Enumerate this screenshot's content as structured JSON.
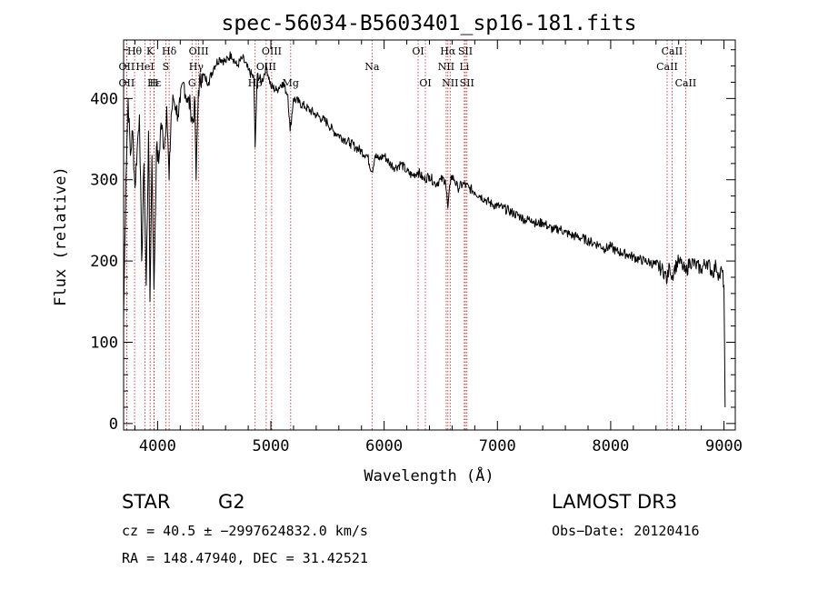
{
  "chart_data": {
    "type": "line",
    "title": "spec-56034-B5603401_sp16-181.fits",
    "xlabel": "Wavelength (Å)",
    "ylabel": "Flux (relative)",
    "xlim": [
      3700,
      9100
    ],
    "ylim": [
      -8,
      472
    ],
    "xticks": [
      4000,
      5000,
      6000,
      7000,
      8000,
      9000
    ],
    "yticks": [
      0,
      100,
      200,
      300,
      400
    ],
    "series": [
      {
        "name": "spectrum",
        "x": [
          3700,
          3720,
          3740,
          3760,
          3780,
          3800,
          3820,
          3840,
          3860,
          3880,
          3900,
          3920,
          3933,
          3950,
          3968,
          3990,
          4010,
          4030,
          4060,
          4080,
          4102,
          4120,
          4140,
          4160,
          4180,
          4200,
          4230,
          4260,
          4290,
          4310,
          4330,
          4340,
          4360,
          4390,
          4420,
          4450,
          4500,
          4550,
          4600,
          4650,
          4700,
          4750,
          4800,
          4850,
          4861,
          4880,
          4920,
          4960,
          5000,
          5050,
          5100,
          5150,
          5170,
          5200,
          5250,
          5300,
          5350,
          5400,
          5450,
          5500,
          5550,
          5600,
          5650,
          5700,
          5750,
          5800,
          5850,
          5893,
          5920,
          5950,
          6000,
          6050,
          6100,
          6150,
          6200,
          6250,
          6300,
          6350,
          6400,
          6450,
          6500,
          6540,
          6563,
          6590,
          6620,
          6650,
          6700,
          6750,
          6800,
          6850,
          6900,
          6950,
          7000,
          7050,
          7100,
          7150,
          7200,
          7250,
          7300,
          7350,
          7400,
          7450,
          7500,
          7550,
          7600,
          7650,
          7700,
          7750,
          7800,
          7850,
          7900,
          7950,
          8000,
          8050,
          8100,
          8150,
          8200,
          8250,
          8300,
          8350,
          8400,
          8450,
          8480,
          8498,
          8520,
          8542,
          8560,
          8600,
          8630,
          8662,
          8700,
          8750,
          8800,
          8850,
          8900,
          8930,
          8960,
          8980,
          9000,
          9010
        ],
        "y": [
          130,
          300,
          400,
          330,
          360,
          290,
          340,
          380,
          200,
          320,
          170,
          360,
          150,
          330,
          165,
          340,
          320,
          370,
          340,
          390,
          300,
          380,
          400,
          390,
          380,
          395,
          420,
          400,
          390,
          370,
          395,
          300,
          410,
          430,
          425,
          420,
          440,
          450,
          445,
          455,
          440,
          450,
          435,
          425,
          340,
          430,
          420,
          440,
          415,
          410,
          420,
          405,
          360,
          400,
          395,
          390,
          385,
          380,
          375,
          370,
          360,
          355,
          350,
          345,
          340,
          335,
          330,
          310,
          330,
          325,
          330,
          320,
          315,
          320,
          310,
          305,
          310,
          300,
          305,
          295,
          300,
          300,
          265,
          305,
          300,
          290,
          295,
          290,
          285,
          280,
          275,
          270,
          268,
          265,
          262,
          258,
          255,
          250,
          252,
          245,
          248,
          242,
          238,
          240,
          235,
          232,
          230,
          228,
          225,
          222,
          220,
          215,
          218,
          212,
          210,
          208,
          205,
          202,
          200,
          198,
          195,
          190,
          185,
          175,
          195,
          180,
          190,
          200,
          195,
          185,
          200,
          195,
          190,
          200,
          185,
          195,
          180,
          190,
          170,
          20
        ],
        "color": "#000000"
      }
    ],
    "lines": [
      {
        "label": "Hθ",
        "wave": 3797,
        "row": 1
      },
      {
        "label": "K",
        "wave": 3934,
        "row": 1
      },
      {
        "label": "Hδ",
        "wave": 4102,
        "row": 1
      },
      {
        "label": "OIII",
        "wave": 4363,
        "row": 1
      },
      {
        "label": "OIII",
        "wave": 5007,
        "row": 1
      },
      {
        "label": "OI",
        "wave": 6300,
        "row": 1
      },
      {
        "label": "Hα",
        "wave": 6563,
        "row": 1
      },
      {
        "label": "SII",
        "wave": 6717,
        "row": 1
      },
      {
        "label": "CaII",
        "wave": 8542,
        "row": 1
      },
      {
        "label": "OII",
        "wave": 3727,
        "row": 2
      },
      {
        "label": "HeI",
        "wave": 3889,
        "row": 2
      },
      {
        "label": "S",
        "wave": 4072,
        "row": 2
      },
      {
        "label": "Hγ",
        "wave": 4341,
        "row": 2
      },
      {
        "label": "OIII",
        "wave": 4959,
        "row": 2
      },
      {
        "label": "Na",
        "wave": 5893,
        "row": 2
      },
      {
        "label": "NII",
        "wave": 6548,
        "row": 2
      },
      {
        "label": "Li",
        "wave": 6708,
        "row": 2
      },
      {
        "label": "CaII",
        "wave": 8498,
        "row": 2
      },
      {
        "label": "OII",
        "wave": 3727,
        "row": 3
      },
      {
        "label": "Hε",
        "wave": 3970,
        "row": 3
      },
      {
        "label": "H",
        "wave": 3968,
        "row": 3
      },
      {
        "label": "G",
        "wave": 4304,
        "row": 3
      },
      {
        "label": "Hβ",
        "wave": 4861,
        "row": 3
      },
      {
        "label": "Mg",
        "wave": 5175,
        "row": 3
      },
      {
        "label": "OI",
        "wave": 6364,
        "row": 3
      },
      {
        "label": "NII",
        "wave": 6583,
        "row": 3
      },
      {
        "label": "SII",
        "wave": 6731,
        "row": 3
      },
      {
        "label": "CaII",
        "wave": 8662,
        "row": 3
      }
    ]
  },
  "info": {
    "class": "STAR",
    "subclass": "G2",
    "survey": "LAMOST DR3",
    "cz": "cz = 40.5 ± −2997624832.0 km/s",
    "obsdate": "Obs−Date: 20120416",
    "radec": "RA = 148.47940, DEC =  31.42521"
  }
}
